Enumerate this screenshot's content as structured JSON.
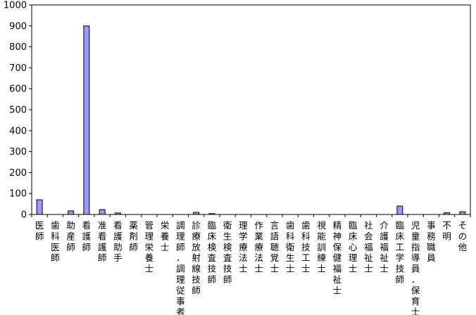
{
  "chart_data": {
    "type": "bar",
    "title": "",
    "xlabel": "",
    "ylabel": "",
    "ylim": [
      0,
      1000
    ],
    "yticks": [
      0,
      100,
      200,
      300,
      400,
      500,
      600,
      700,
      800,
      900,
      1000
    ],
    "grid": false,
    "legend": "none",
    "bar_color": "#9999ff",
    "categories": [
      "医師",
      "歯科医師",
      "助産師",
      "看護師",
      "准看護師",
      "看護助手",
      "薬剤師",
      "管理栄養士",
      "栄養士",
      "調理師・調理従事者",
      "診療放射線技師",
      "臨床検査技師",
      "衛生検査技師",
      "理学療法士",
      "作業療法士",
      "言語聴覚士",
      "歯科衛生士",
      "歯科技工士",
      "視能訓練士",
      "精神保健福祉士",
      "臨床心理士",
      "社会福祉士",
      "介護福祉士",
      "臨床工学技師",
      "児童指導員・保育士",
      "事務職員",
      "不明",
      "その他"
    ],
    "values": [
      70,
      0,
      17,
      900,
      23,
      7,
      0,
      0,
      0,
      0,
      10,
      4,
      0,
      0,
      0,
      0,
      0,
      0,
      0,
      0,
      0,
      0,
      0,
      40,
      0,
      0,
      8,
      13
    ]
  }
}
